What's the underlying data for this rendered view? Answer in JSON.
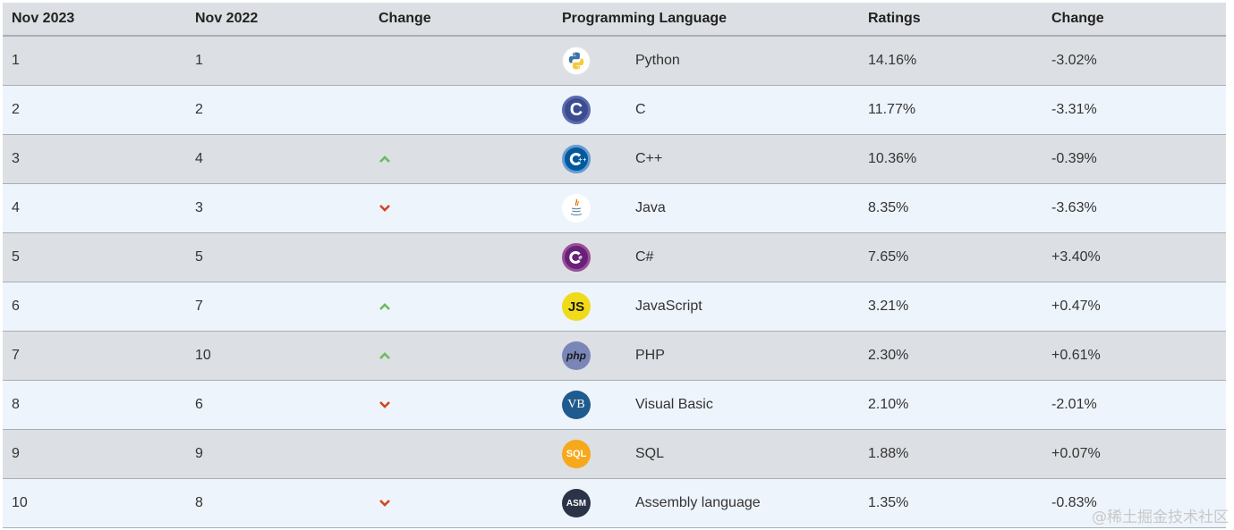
{
  "header": {
    "rank_now": "Nov 2023",
    "rank_prev": "Nov 2022",
    "change": "Change",
    "language": "Programming Language",
    "ratings": "Ratings",
    "ratings_change": "Change"
  },
  "rows": [
    {
      "now": "1",
      "prev": "1",
      "trend": "none",
      "logo": "python-logo-icon",
      "language": "Python",
      "rating": "14.16%",
      "change": "-3.02%"
    },
    {
      "now": "2",
      "prev": "2",
      "trend": "none",
      "logo": "c-logo-icon",
      "language": "C",
      "rating": "11.77%",
      "change": "-3.31%"
    },
    {
      "now": "3",
      "prev": "4",
      "trend": "up",
      "logo": "cpp-logo-icon",
      "language": "C++",
      "rating": "10.36%",
      "change": "-0.39%"
    },
    {
      "now": "4",
      "prev": "3",
      "trend": "down",
      "logo": "java-logo-icon",
      "language": "Java",
      "rating": "8.35%",
      "change": "-3.63%"
    },
    {
      "now": "5",
      "prev": "5",
      "trend": "none",
      "logo": "csharp-logo-icon",
      "language": "C#",
      "rating": "7.65%",
      "change": "+3.40%"
    },
    {
      "now": "6",
      "prev": "7",
      "trend": "up",
      "logo": "javascript-logo-icon",
      "language": "JavaScript",
      "rating": "3.21%",
      "change": "+0.47%"
    },
    {
      "now": "7",
      "prev": "10",
      "trend": "up",
      "logo": "php-logo-icon",
      "language": "PHP",
      "rating": "2.30%",
      "change": "+0.61%"
    },
    {
      "now": "8",
      "prev": "6",
      "trend": "down",
      "logo": "visual-basic-logo-icon",
      "language": "Visual Basic",
      "rating": "2.10%",
      "change": "-2.01%"
    },
    {
      "now": "9",
      "prev": "9",
      "trend": "none",
      "logo": "sql-logo-icon",
      "language": "SQL",
      "rating": "1.88%",
      "change": "+0.07%"
    },
    {
      "now": "10",
      "prev": "8",
      "trend": "down",
      "logo": "assembly-logo-icon",
      "language": "Assembly language",
      "rating": "1.35%",
      "change": "-0.83%"
    }
  ],
  "logos": {
    "c": "C",
    "js": "JS",
    "php": "php",
    "vb": "VB",
    "sql": "SQL",
    "asm": "ASM"
  },
  "colors": {
    "up_arrow": "#6dbb5d",
    "down_arrow": "#d2471f",
    "row_odd": "#dcdfe3",
    "row_even": "#eef4fb"
  },
  "watermark": "@稀土掘金技术社区"
}
